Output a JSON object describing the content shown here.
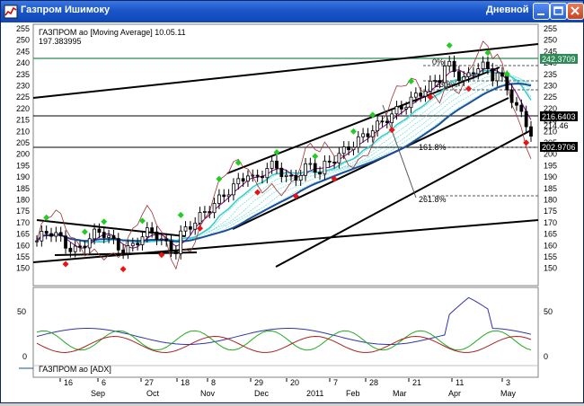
{
  "window": {
    "title": "Газпром Ишимоку",
    "mode": "Дневной",
    "buttons": [
      "minimize",
      "maximize",
      "close"
    ]
  },
  "price_panel": {
    "legend_line1": "ГАЗПРОМ ао [Moving Average] 10.05.11",
    "legend_line2": "197.383995",
    "y_ticks": [
      "255",
      "250",
      "245",
      "240",
      "235",
      "230",
      "225",
      "220",
      "215",
      "210",
      "205",
      "200",
      "195",
      "190",
      "185",
      "180",
      "175",
      "170",
      "165",
      "160",
      "155",
      "150"
    ],
    "price_flags": [
      "242.3709",
      "216.6403",
      "214.46",
      "202.9706"
    ],
    "fib_labels": [
      "0%",
      "23.6%",
      "161.8%",
      "261.8%"
    ]
  },
  "adx_panel": {
    "legend": "ГАЗПРОМ ао [ADX]",
    "y_ticks": [
      "50",
      "0"
    ]
  },
  "x_axis": {
    "days": [
      "16",
      "6",
      "27",
      "18",
      "8",
      "29",
      "20",
      "7",
      "28",
      "21",
      "11",
      "3"
    ],
    "months": [
      "Sep",
      "Oct",
      "Nov",
      "Dec",
      "2011",
      "Feb",
      "Mar",
      "Apr",
      "May"
    ]
  },
  "colors": {
    "title_bar": "#1a56c8",
    "candle": "#000000",
    "up_marker": "#22cc22",
    "down_marker": "#ee1111",
    "ma_fast": "#800080",
    "ma_slow": "#993333",
    "cloud": "#33cccc",
    "long_ma": "#1a4f9a",
    "adx": "#3333aa",
    "di_plus": "#22aa22",
    "di_minus": "#aa2222"
  }
}
